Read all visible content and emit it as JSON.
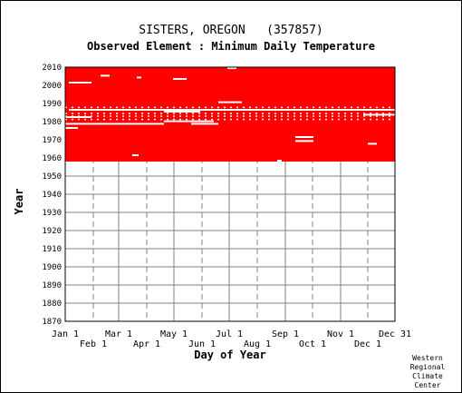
{
  "chart_data": {
    "type": "heatmap",
    "title": "SISTERS, OREGON   (357857)",
    "subtitle": "Observed Element : Minimum Daily Temperature",
    "xlabel": "Day of Year",
    "ylabel": "Year",
    "credit": [
      "Western",
      "Regional",
      "Climate",
      "Center"
    ],
    "colors": {
      "observed": "#ff0000",
      "grid": "#808080",
      "frame": "#000000"
    },
    "ylim": [
      1870,
      2010
    ],
    "y_ticks": [
      1870,
      1880,
      1890,
      1900,
      1910,
      1920,
      1930,
      1940,
      1950,
      1960,
      1970,
      1980,
      1990,
      2000,
      2010
    ],
    "months_row1": [
      {
        "label": "Jan 1",
        "day": 1
      },
      {
        "label": "Mar 1",
        "day": 60
      },
      {
        "label": "May 1",
        "day": 121
      },
      {
        "label": "Jul 1",
        "day": 182
      },
      {
        "label": "Sep 1",
        "day": 244
      },
      {
        "label": "Nov 1",
        "day": 305
      },
      {
        "label": "Dec 31",
        "day": 365
      }
    ],
    "months_row2": [
      {
        "label": "Feb 1",
        "day": 32
      },
      {
        "label": "Apr 1",
        "day": 91
      },
      {
        "label": "Jun 1",
        "day": 152
      },
      {
        "label": "Aug 1",
        "day": 213
      },
      {
        "label": "Oct 1",
        "day": 274
      },
      {
        "label": "Dec 1",
        "day": 335
      }
    ],
    "gridlines_solid_days": [
      1,
      60,
      121,
      182,
      244,
      305,
      365
    ],
    "gridlines_dashed_days": [
      32,
      91,
      152,
      213,
      274,
      335
    ],
    "observed_period": {
      "start_year": 1958,
      "end_year": 2010,
      "start_day": 1,
      "end_day": 365
    },
    "missing_rows": [
      {
        "year": 1978.8,
        "start_day": 1,
        "end_day": 110
      },
      {
        "year": 1978.8,
        "start_day": 140,
        "end_day": 170
      },
      {
        "year": 1980.2,
        "start_day": 110,
        "end_day": 165
      },
      {
        "year": 1985.5,
        "start_day": 110,
        "end_day": 150
      },
      {
        "year": 1986.5,
        "start_day": 5,
        "end_day": 365
      },
      {
        "year": 1990.7,
        "start_day": 170,
        "end_day": 196
      },
      {
        "year": 2001.5,
        "start_day": 5,
        "end_day": 30
      },
      {
        "year": 2003.5,
        "start_day": 120,
        "end_day": 135
      },
      {
        "year": 2004.3,
        "start_day": 80,
        "end_day": 85
      },
      {
        "year": 2005.3,
        "start_day": 40,
        "end_day": 50
      },
      {
        "year": 2009.5,
        "start_day": 180,
        "end_day": 190
      },
      {
        "year": 1971.5,
        "start_day": 255,
        "end_day": 275
      },
      {
        "year": 1969.3,
        "start_day": 255,
        "end_day": 275
      },
      {
        "year": 1967.8,
        "start_day": 335,
        "end_day": 345
      },
      {
        "year": 1982.5,
        "start_day": 1,
        "end_day": 30
      },
      {
        "year": 1983.8,
        "start_day": 330,
        "end_day": 365
      },
      {
        "year": 1976.5,
        "start_day": 1,
        "end_day": 15
      },
      {
        "year": 1961.5,
        "start_day": 75,
        "end_day": 82
      },
      {
        "year": 1958.5,
        "start_day": 235,
        "end_day": 240
      }
    ],
    "dotted_rows": [
      1981.2,
      1983.0,
      1984.5,
      1987.8
    ]
  }
}
